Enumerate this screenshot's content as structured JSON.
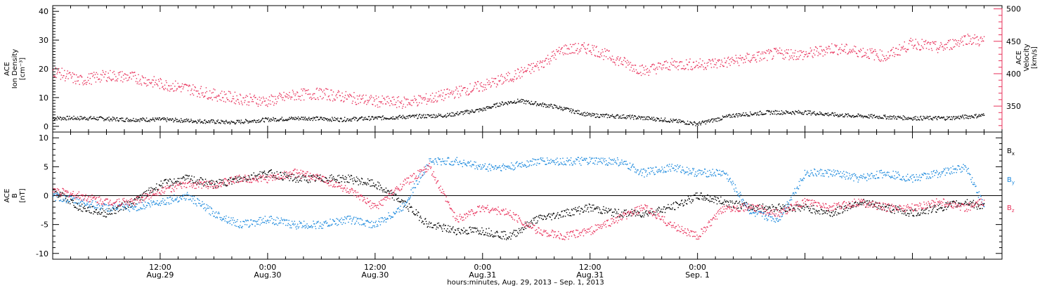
{
  "chart_data": [
    {
      "type": "scatter",
      "panel": "top",
      "ylabel_lines": [
        "ACE",
        "Ion Density",
        "[cm⁻³]"
      ],
      "ylabel2_lines": [
        "ACE",
        "Velocity",
        "[km/s]"
      ],
      "xlim_hours": [
        0,
        106
      ],
      "ylim": [
        -2,
        42
      ],
      "y2lim": [
        310,
        505
      ],
      "y_ticks": [
        0,
        10,
        20,
        30,
        40
      ],
      "y2_ticks": [
        350,
        400,
        450,
        500
      ],
      "colors": {
        "density": "#000000",
        "velocity": "#e8305a"
      },
      "series": [
        {
          "name": "",
          "axis": "left",
          "color": "#000000",
          "x": [
            0,
            4,
            8,
            12,
            16,
            20,
            24,
            28,
            32,
            36,
            40,
            44,
            48,
            50,
            52,
            54,
            56,
            58,
            60,
            64,
            68,
            72,
            74,
            76,
            80,
            84,
            88,
            92,
            96,
            100,
            104
          ],
          "y": [
            3,
            3,
            2.5,
            2.5,
            2,
            1.5,
            2.5,
            3,
            2.5,
            3,
            3.5,
            4,
            6,
            8,
            9,
            8,
            7,
            5.5,
            4,
            3.5,
            2.5,
            1,
            2.5,
            4,
            5,
            5,
            4,
            3.5,
            3,
            3,
            4
          ]
        },
        {
          "name": "",
          "axis": "right",
          "color": "#e8305a",
          "x": [
            0,
            3,
            6,
            9,
            12,
            15,
            18,
            21,
            24,
            27,
            30,
            33,
            36,
            39,
            42,
            45,
            48,
            51,
            54,
            57,
            60,
            63,
            66,
            69,
            72,
            75,
            78,
            81,
            84,
            87,
            90,
            93,
            96,
            99,
            102,
            104
          ],
          "y": [
            405,
            390,
            398,
            395,
            385,
            378,
            368,
            362,
            358,
            368,
            370,
            364,
            358,
            356,
            362,
            372,
            382,
            395,
            412,
            438,
            440,
            422,
            405,
            415,
            415,
            418,
            425,
            432,
            430,
            440,
            435,
            427,
            448,
            440,
            455,
            450
          ]
        }
      ]
    },
    {
      "type": "line",
      "panel": "bottom",
      "ylabel_lines": [
        "ACE",
        "B",
        "[nT]"
      ],
      "xlabel": "hours:minutes, Aug. 29, 2013 – Sep.  1, 2013",
      "xlim_hours": [
        0,
        106
      ],
      "ylim": [
        -11,
        11
      ],
      "y_ticks": [
        -10,
        -5,
        0,
        5,
        10
      ],
      "zero_line": true,
      "x_ticks": [
        {
          "h": 12,
          "time": "12:00",
          "date": "Aug.29"
        },
        {
          "h": 24,
          "time": "0:00",
          "date": "Aug.30"
        },
        {
          "h": 36,
          "time": "12:00",
          "date": "Aug.30"
        },
        {
          "h": 48,
          "time": "0:00",
          "date": "Aug.31"
        },
        {
          "h": 60,
          "time": "12:00",
          "date": "Aug.31"
        },
        {
          "h": 72,
          "time": "0:00",
          "date": "Sep. 1"
        }
      ],
      "series": [
        {
          "name": "B",
          "subscript": "x",
          "color": "#000000",
          "x": [
            0,
            3,
            6,
            9,
            12,
            15,
            18,
            21,
            24,
            27,
            30,
            33,
            36,
            39,
            42,
            45,
            48,
            51,
            54,
            57,
            60,
            63,
            66,
            69,
            72,
            75,
            78,
            81,
            84,
            87,
            90,
            93,
            96,
            99,
            102,
            104
          ],
          "y": [
            1,
            -2,
            -3,
            -1,
            2,
            3,
            2,
            3,
            4,
            3,
            3,
            3,
            2,
            -1,
            -5,
            -6,
            -6,
            -7,
            -4,
            -3,
            -2,
            -3,
            -3,
            -2,
            0,
            -1,
            -2,
            -2,
            -2,
            -3,
            -1,
            -2,
            -3,
            -2,
            -1,
            -2
          ]
        },
        {
          "name": "B",
          "subscript": "y",
          "color": "#1a88dd",
          "x": [
            0,
            3,
            6,
            9,
            12,
            15,
            18,
            21,
            24,
            27,
            30,
            33,
            36,
            39,
            42,
            45,
            48,
            51,
            54,
            57,
            60,
            63,
            66,
            69,
            72,
            75,
            78,
            81,
            84,
            87,
            90,
            93,
            96,
            99,
            102,
            104
          ],
          "y": [
            0,
            -1,
            -2,
            -2,
            -1,
            0,
            -3,
            -5,
            -4,
            -5,
            -5,
            -4,
            -5,
            -2,
            6,
            6,
            5,
            5,
            6,
            6,
            6,
            6,
            4,
            5,
            4,
            4,
            -3,
            -4,
            4,
            4,
            3,
            4,
            3,
            4,
            5,
            -2
          ]
        },
        {
          "name": "B",
          "subscript": "z",
          "color": "#e8305a",
          "x": [
            0,
            3,
            6,
            9,
            12,
            15,
            18,
            21,
            24,
            27,
            30,
            33,
            36,
            39,
            42,
            45,
            48,
            51,
            54,
            57,
            60,
            63,
            66,
            69,
            72,
            75,
            78,
            81,
            84,
            87,
            90,
            93,
            96,
            99,
            102,
            104
          ],
          "y": [
            1,
            0,
            -1,
            -1,
            1,
            2,
            2,
            3,
            3,
            4,
            3,
            1,
            -2,
            2,
            5,
            -4,
            -2,
            -3,
            -6,
            -7,
            -6,
            -4,
            -2,
            -5,
            -7,
            -2,
            -2,
            -3,
            -1,
            -2,
            -1,
            -2,
            -2,
            -1,
            -2,
            -1
          ]
        }
      ]
    }
  ]
}
